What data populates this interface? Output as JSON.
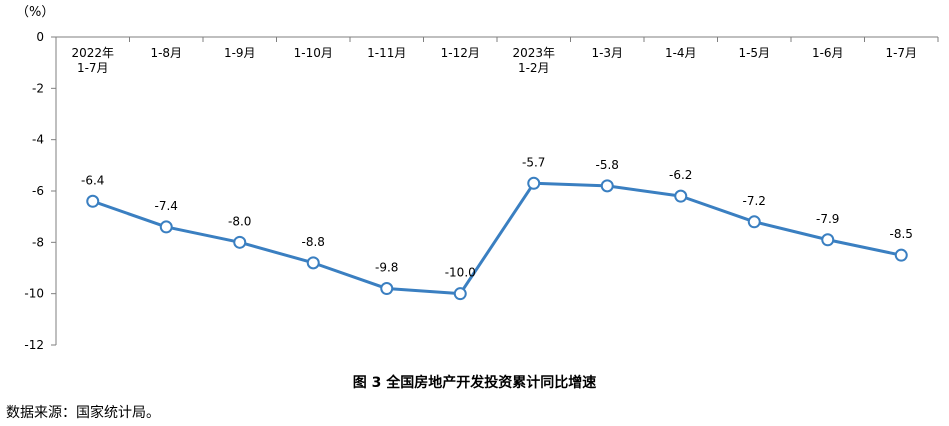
{
  "chart_data": {
    "type": "line",
    "unit_label": "（%）",
    "categories": [
      [
        "2022年",
        "1-7月"
      ],
      [
        "1-8月"
      ],
      [
        "1-9月"
      ],
      [
        "1-10月"
      ],
      [
        "1-11月"
      ],
      [
        "1-12月"
      ],
      [
        "2023年",
        "1-2月"
      ],
      [
        "1-3月"
      ],
      [
        "1-4月"
      ],
      [
        "1-5月"
      ],
      [
        "1-6月"
      ],
      [
        "1-7月"
      ]
    ],
    "series": [
      {
        "values": [
          -6.4,
          -7.4,
          -8.0,
          -8.8,
          -9.8,
          -10.0,
          -5.7,
          -5.8,
          -6.2,
          -7.2,
          -7.9,
          -8.5
        ]
      }
    ],
    "data_labels": [
      "-6.4",
      "-7.4",
      "-8.0",
      "-8.8",
      "-9.8",
      "-10.0",
      "-5.7",
      "-5.8",
      "-6.2",
      "-7.2",
      "-7.9",
      "-8.5"
    ],
    "yticks": [
      "0",
      "-2",
      "-4",
      "-6",
      "-8",
      "-10",
      "-12"
    ],
    "ytick_values": [
      0,
      -2,
      -4,
      -6,
      -8,
      -10,
      -12
    ],
    "ylim": [
      -12,
      0
    ],
    "x_axis_position": "top",
    "grid": false,
    "line_color": "#3a7fc1",
    "marker_fill": "#ffffff"
  },
  "caption": "图 3   全国房地产开发投资累计同比增速",
  "source": "数据来源：国家统计局。"
}
